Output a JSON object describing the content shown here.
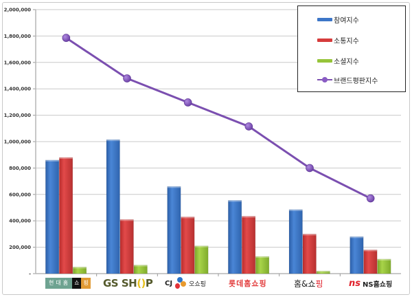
{
  "chart_data": {
    "type": "bar",
    "title": "",
    "xlabel": "",
    "ylabel": "",
    "ylim": [
      0,
      2000000
    ],
    "yticks": [
      0,
      200000,
      400000,
      600000,
      800000,
      1000000,
      1200000,
      1400000,
      1600000,
      1800000,
      2000000
    ],
    "ytick_labels": [
      "-",
      "200,000",
      "400,000",
      "600,000",
      "800,000",
      "1,000,000",
      "1,200,000",
      "1,400,000",
      "1,600,000",
      "1,800,000",
      "2,000,000"
    ],
    "grid": true,
    "legend_position": "top-right",
    "categories": [
      "현대홈쇼핑",
      "GS SHOP",
      "CJ오쇼핑",
      "롯데홈쇼핑",
      "홈&쇼핑",
      "NS홈쇼핑"
    ],
    "series": [
      {
        "name": "참여지수",
        "type": "bar",
        "color": "#3d76c8",
        "values": [
          860000,
          1015000,
          660000,
          555000,
          485000,
          280000
        ]
      },
      {
        "name": "소통지수",
        "type": "bar",
        "color": "#d63c3c",
        "values": [
          880000,
          410000,
          430000,
          435000,
          300000,
          180000
        ]
      },
      {
        "name": "소셜지수",
        "type": "bar",
        "color": "#96c43a",
        "values": [
          50000,
          65000,
          210000,
          130000,
          20000,
          110000
        ]
      },
      {
        "name": "브랜드평판지수",
        "type": "line",
        "color": "#7b4fb0",
        "values": [
          1786000,
          1479000,
          1297000,
          1115000,
          800000,
          570000
        ]
      }
    ]
  },
  "legend": {
    "items": [
      {
        "label": "참여지수",
        "color": "#3d76c8"
      },
      {
        "label": "소통지수",
        "color": "#d63c3c"
      },
      {
        "label": "소셜지수",
        "color": "#96c43a"
      },
      {
        "label": "브랜드평판지수",
        "color": "#7b4fb0"
      }
    ]
  },
  "logos": {
    "hyundai": {
      "part1": "현대홈",
      "part2": "쇼",
      "part3": "핑"
    },
    "gs": {
      "pre": "GS SH",
      "o": "()",
      "post": "P"
    },
    "cj": {
      "brand": "CJ",
      "text": "오쇼핑"
    },
    "lotte": {
      "text": "롯데홈쇼핑"
    },
    "home": {
      "pre": "홈&쇼",
      "post": "핑"
    },
    "ns": {
      "mark": "ns",
      "text": "NS홈쇼핑"
    }
  }
}
